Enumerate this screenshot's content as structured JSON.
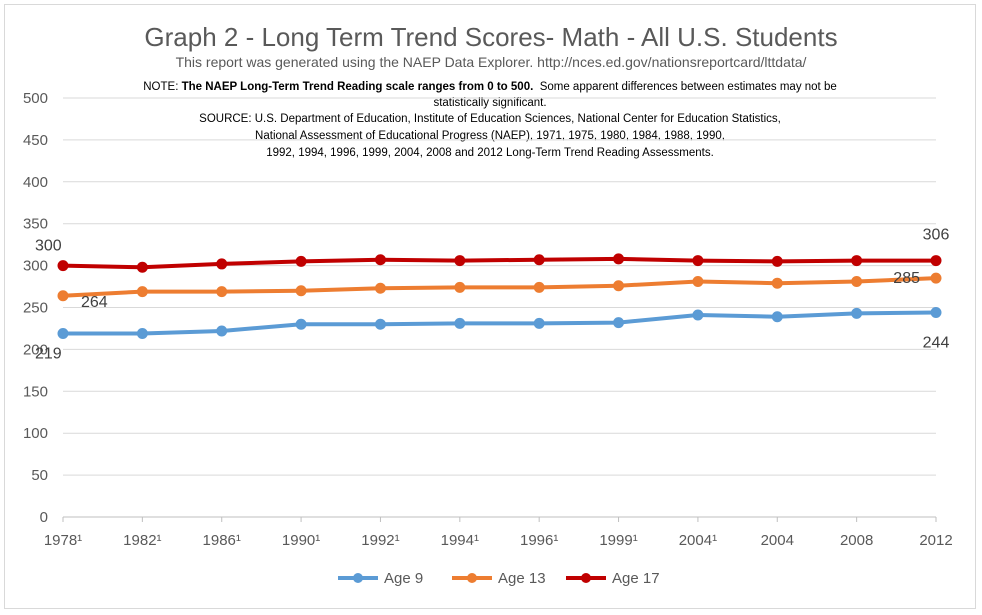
{
  "chart_data": {
    "type": "line",
    "title": "Graph 2 - Long Term Trend Scores- Math - All U.S. Students",
    "subtitle": "This report was generated using the NAEP Data Explorer. http://nces.ed.gov/nationsreportcard/lttdata/",
    "note_label": "NOTE:",
    "note_bold": "The NAEP Long-Term Trend Reading scale ranges from 0 to 500.",
    "note_rest": "Some apparent differences between estimates may not be statistically significant.",
    "source_lines": [
      "SOURCE: U.S. Department of Education, Institute of Education Sciences, National Center for Education Statistics,",
      "National Assessment of Educational Progress (NAEP), 1971, 1975,  1980, 1984,  1988, 1990,",
      "1992,  1994, 1996,  1999, 2004,  2008  and 2012  Long-Term Trend Reading Assessments."
    ],
    "categories": [
      "1978¹",
      "1982¹",
      "1986¹",
      "1990¹",
      "1992¹",
      "1994¹",
      "1996¹",
      "1999¹",
      "2004¹",
      "2004",
      "2008",
      "2012"
    ],
    "ylim": [
      0,
      500
    ],
    "yticks": [
      "0",
      "50",
      "100",
      "150",
      "200",
      "250",
      "300",
      "350",
      "400",
      "450",
      "500"
    ],
    "grid": true,
    "legend_position": "bottom",
    "series": [
      {
        "name": "Age 9",
        "color": "#5b9bd5",
        "values": [
          219,
          219,
          222,
          230,
          230,
          231,
          231,
          232,
          241,
          239,
          243,
          244
        ],
        "labels": {
          "0": "219",
          "11": "244"
        }
      },
      {
        "name": "Age 13",
        "color": "#ed7d31",
        "values": [
          264,
          269,
          269,
          270,
          273,
          274,
          274,
          276,
          281,
          279,
          281,
          285
        ],
        "labels": {
          "0": "264",
          "11": "285"
        }
      },
      {
        "name": "Age 17",
        "color": "#c00000",
        "values": [
          300,
          298,
          302,
          305,
          307,
          306,
          307,
          308,
          306,
          305,
          306,
          306
        ],
        "labels": {
          "0": "300",
          "11": "306"
        }
      }
    ]
  }
}
